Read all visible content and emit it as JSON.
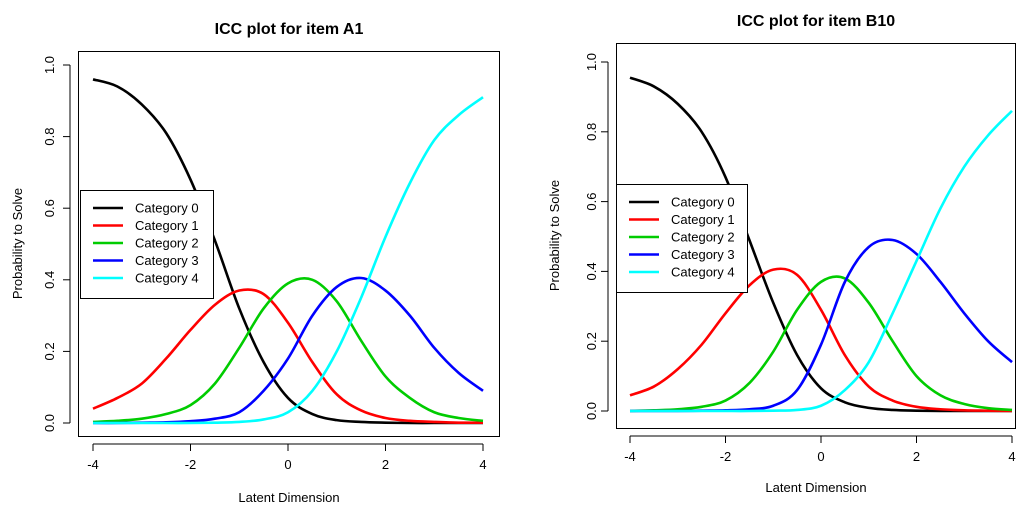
{
  "chart_data": [
    {
      "type": "line",
      "title": "ICC plot for item A1",
      "xlabel": "Latent Dimension",
      "ylabel": "Probability to Solve",
      "xlim": [
        -4,
        4
      ],
      "ylim": [
        0,
        1
      ],
      "xticks": [
        "-4",
        "-2",
        "0",
        "2",
        "4"
      ],
      "yticks": [
        "0.0",
        "0.2",
        "0.4",
        "0.6",
        "0.8",
        "1.0"
      ],
      "grid": false,
      "legend_position": "left",
      "x": [
        -4,
        -3.5,
        -3,
        -2.5,
        -2,
        -1.5,
        -1,
        -0.5,
        0,
        0.5,
        1,
        1.5,
        2,
        2.5,
        3,
        3.5,
        4
      ],
      "series": [
        {
          "name": "Category 0",
          "color": "#000000",
          "values": [
            0.96,
            0.94,
            0.89,
            0.81,
            0.68,
            0.51,
            0.32,
            0.17,
            0.07,
            0.025,
            0.008,
            0.003,
            0.001,
            0.0,
            0.0,
            0.0,
            0.0
          ]
        },
        {
          "name": "Category 1",
          "color": "#ff0000",
          "values": [
            0.04,
            0.07,
            0.11,
            0.18,
            0.26,
            0.33,
            0.37,
            0.36,
            0.28,
            0.17,
            0.08,
            0.035,
            0.014,
            0.006,
            0.003,
            0.001,
            0.001
          ]
        },
        {
          "name": "Category 2",
          "color": "#00cc00",
          "values": [
            0.003,
            0.006,
            0.012,
            0.025,
            0.05,
            0.11,
            0.21,
            0.32,
            0.39,
            0.4,
            0.34,
            0.23,
            0.13,
            0.07,
            0.03,
            0.014,
            0.006
          ]
        },
        {
          "name": "Category 3",
          "color": "#0000ff",
          "values": [
            0.0,
            0.0,
            0.001,
            0.002,
            0.005,
            0.012,
            0.03,
            0.09,
            0.18,
            0.3,
            0.38,
            0.405,
            0.37,
            0.3,
            0.21,
            0.14,
            0.09
          ]
        },
        {
          "name": "Category 4",
          "color": "#00ffff",
          "values": [
            0.0,
            0.0,
            0.0,
            0.0,
            0.0,
            0.001,
            0.003,
            0.01,
            0.03,
            0.09,
            0.2,
            0.35,
            0.52,
            0.67,
            0.79,
            0.86,
            0.91
          ]
        }
      ]
    },
    {
      "type": "line",
      "title": "ICC plot for item B10",
      "xlabel": "Latent Dimension",
      "ylabel": "Probability to Solve",
      "xlim": [
        -4,
        4
      ],
      "ylim": [
        0,
        1
      ],
      "xticks": [
        "-4",
        "-2",
        "0",
        "2",
        "4"
      ],
      "yticks": [
        "0.0",
        "0.2",
        "0.4",
        "0.6",
        "0.8",
        "1.0"
      ],
      "grid": false,
      "legend_position": "left",
      "x": [
        -4,
        -3.5,
        -3,
        -2.5,
        -2,
        -1.5,
        -1,
        -0.5,
        0,
        0.5,
        1,
        1.5,
        2,
        2.5,
        3,
        3.5,
        4
      ],
      "series": [
        {
          "name": "Category 0",
          "color": "#000000",
          "values": [
            0.955,
            0.93,
            0.88,
            0.8,
            0.67,
            0.49,
            0.31,
            0.16,
            0.065,
            0.025,
            0.009,
            0.003,
            0.001,
            0.0,
            0.0,
            0.0,
            0.0
          ]
        },
        {
          "name": "Category 1",
          "color": "#ff0000",
          "values": [
            0.045,
            0.07,
            0.12,
            0.19,
            0.28,
            0.36,
            0.405,
            0.39,
            0.29,
            0.16,
            0.07,
            0.03,
            0.012,
            0.005,
            0.002,
            0.001,
            0.0
          ]
        },
        {
          "name": "Category 2",
          "color": "#00cc00",
          "values": [
            0.0,
            0.002,
            0.005,
            0.012,
            0.03,
            0.08,
            0.17,
            0.29,
            0.37,
            0.38,
            0.31,
            0.2,
            0.1,
            0.045,
            0.02,
            0.008,
            0.003
          ]
        },
        {
          "name": "Category 3",
          "color": "#0000ff",
          "values": [
            0.0,
            0.0,
            0.0,
            0.001,
            0.002,
            0.005,
            0.015,
            0.06,
            0.19,
            0.37,
            0.47,
            0.49,
            0.45,
            0.37,
            0.28,
            0.2,
            0.14
          ]
        },
        {
          "name": "Category 4",
          "color": "#00ffff",
          "values": [
            0.0,
            0.0,
            0.0,
            0.0,
            0.0,
            0.0,
            0.001,
            0.003,
            0.015,
            0.06,
            0.14,
            0.28,
            0.43,
            0.58,
            0.7,
            0.79,
            0.86
          ]
        }
      ]
    }
  ]
}
